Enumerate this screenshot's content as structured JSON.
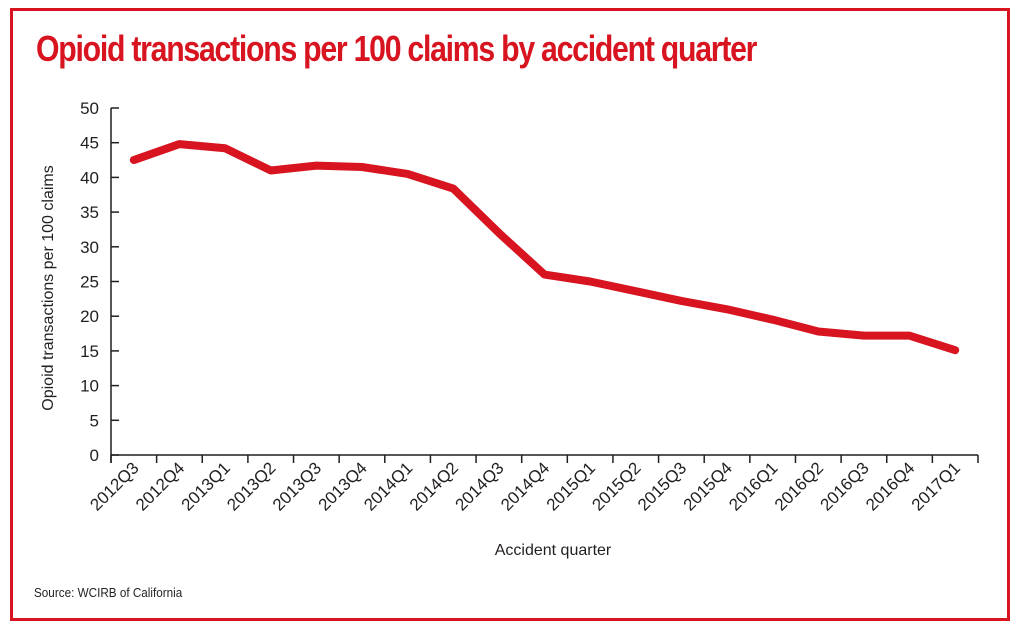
{
  "title": "Opioid transactions per 100 claims by accident quarter",
  "source": "Source: WCIRB of California",
  "colors": {
    "accent": "#d7141f",
    "text": "#231f20",
    "axis": "#231f20"
  },
  "chart_data": {
    "type": "line",
    "title": "Opioid transactions per 100 claims by accident quarter",
    "xlabel": "Accident quarter",
    "ylabel": "Opioid transactions per 100 claims",
    "ylim": [
      0,
      50
    ],
    "yticks": [
      0,
      5,
      10,
      15,
      20,
      25,
      30,
      35,
      40,
      45,
      50
    ],
    "grid": false,
    "legend": "none",
    "categories": [
      "2012Q3",
      "2012Q4",
      "2013Q1",
      "2013Q2",
      "2013Q3",
      "2013Q4",
      "2014Q1",
      "2014Q2",
      "2014Q3",
      "2014Q4",
      "2015Q1",
      "2015Q2",
      "2015Q3",
      "2015Q4",
      "2016Q1",
      "2016Q2",
      "2016Q3",
      "2016Q4",
      "2017Q1"
    ],
    "x": [
      "2012Q3",
      "2012Q4",
      "2013Q1",
      "2013Q2",
      "2013Q3",
      "2013Q4",
      "2014Q1",
      "2014Q2",
      "2014Q3",
      "2014Q4",
      "2015Q1",
      "2015Q2",
      "2015Q3",
      "2015Q4",
      "2016Q1",
      "2016Q2",
      "2016Q3",
      "2016Q4",
      "2017Q1"
    ],
    "series": [
      {
        "values": [
          42.5,
          44.8,
          44.2,
          41.0,
          41.7,
          41.5,
          40.5,
          38.4,
          32.0,
          26.0,
          25.0,
          23.6,
          22.2,
          21.0,
          19.5,
          17.8,
          17.2,
          17.2,
          15.1
        ]
      }
    ]
  }
}
